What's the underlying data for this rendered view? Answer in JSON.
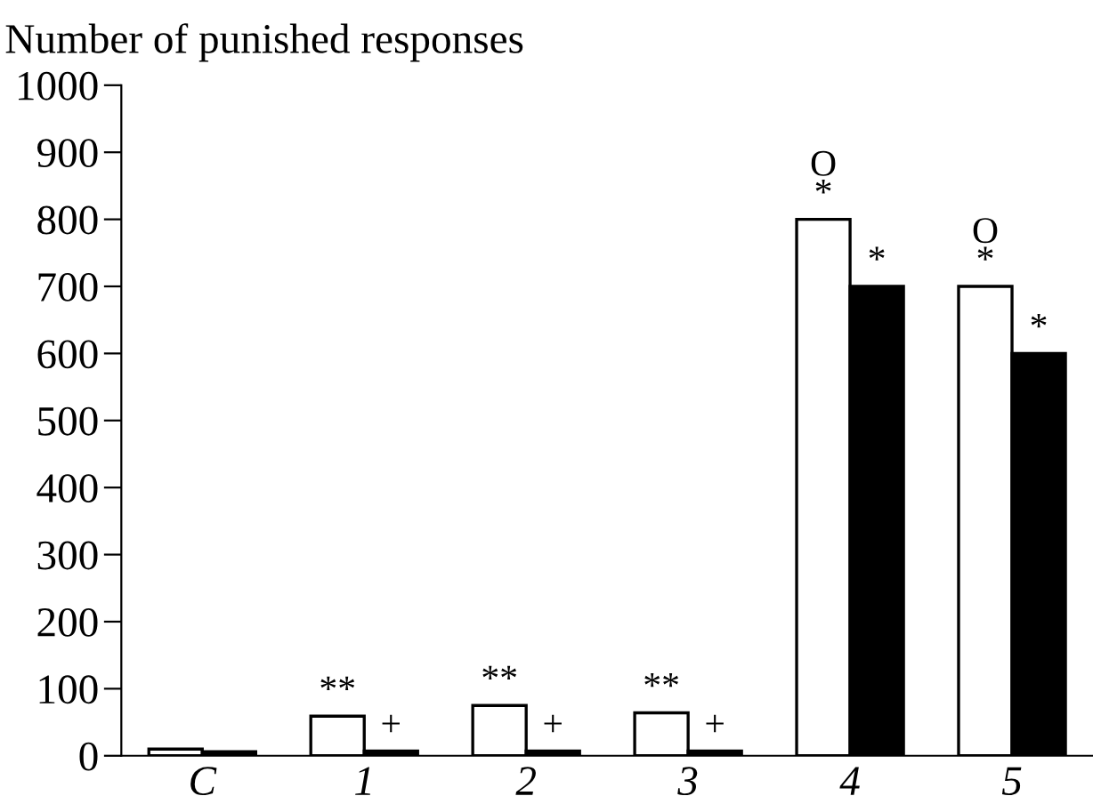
{
  "chart_data": {
    "type": "bar",
    "ylabel": "Number of punished responses",
    "categories": [
      "C",
      "1",
      "2",
      "3",
      "4",
      "5"
    ],
    "series": [
      {
        "color": "#ffffff",
        "values": [
          10,
          59,
          75,
          64,
          800,
          700
        ]
      },
      {
        "color": "#000000",
        "values": [
          6,
          7,
          7,
          7,
          700,
          600
        ]
      }
    ],
    "ylim": [
      0,
      1000
    ],
    "yticks": [
      0,
      100,
      200,
      300,
      400,
      500,
      600,
      700,
      800,
      900,
      1000
    ],
    "grid": false,
    "legend": false,
    "annotations": [
      {
        "text": "**",
        "x": "1",
        "y": 59
      },
      {
        "text": "+",
        "x": "1",
        "y": 7
      },
      {
        "text": "**",
        "x": "2",
        "y": 75
      },
      {
        "text": "+",
        "x": "2",
        "y": 7
      },
      {
        "text": "**",
        "x": "3",
        "y": 64
      },
      {
        "text": "+",
        "x": "3",
        "y": 7
      },
      {
        "text": "O\n*",
        "x": "4",
        "y": 800
      },
      {
        "text": "*",
        "x": "4",
        "y": 700
      },
      {
        "text": "O\n*",
        "x": "5",
        "y": 700
      },
      {
        "text": "*",
        "x": "5",
        "y": 600
      }
    ]
  }
}
